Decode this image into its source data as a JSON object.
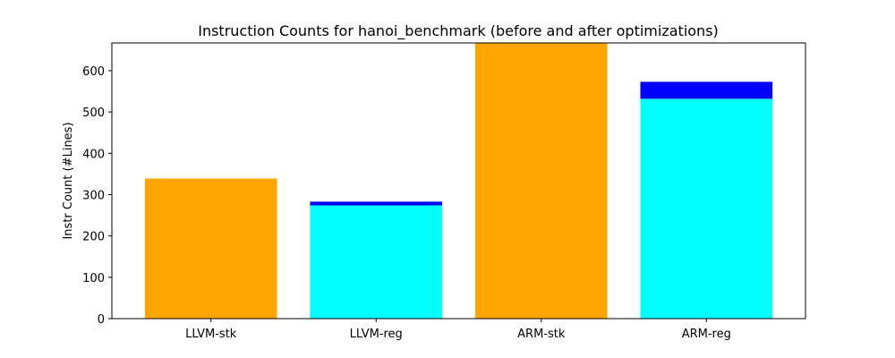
{
  "chart_data": {
    "type": "bar",
    "title": "Instruction Counts for hanoi_benchmark (before and after optimizations)",
    "xlabel": "",
    "ylabel": "Instr Count (#Lines)",
    "ylim": [
      0,
      667
    ],
    "yticks": [
      0,
      100,
      200,
      300,
      400,
      500,
      600
    ],
    "categories": [
      "LLVM-stk",
      "LLVM-reg",
      "ARM-stk",
      "ARM-reg"
    ],
    "series": [
      {
        "name": "",
        "color": "#ffa500",
        "values": [
          339,
          null,
          667,
          null
        ]
      },
      {
        "name": "",
        "color": "#00ffff",
        "values": [
          null,
          274,
          null,
          532
        ]
      },
      {
        "name": "",
        "color": "#0000ff",
        "values": [
          null,
          9,
          null,
          41
        ]
      }
    ],
    "stacked": true,
    "grid": false,
    "legend": "none"
  }
}
